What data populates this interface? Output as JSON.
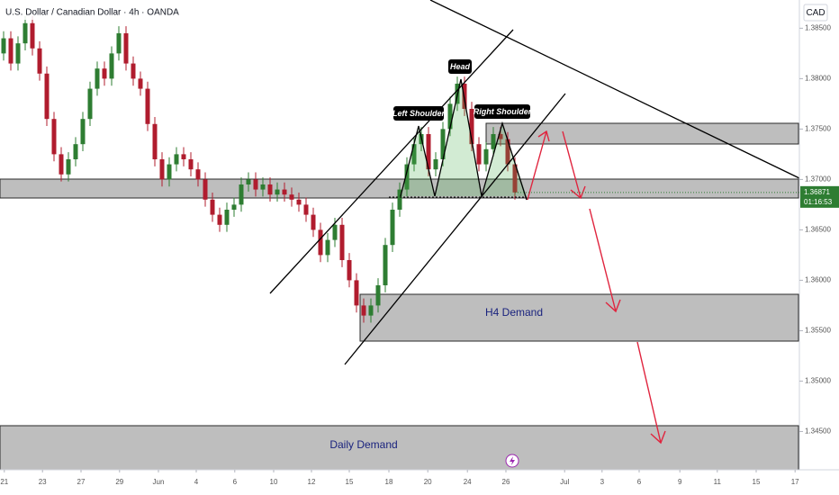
{
  "chart_data": {
    "type": "candlestick",
    "title": "U.S. Dollar / Canadian Dollar · 4h · OANDA",
    "currency": "CAD",
    "up_color": "#2e7d32",
    "down_color": "#b01c2e",
    "open": [
      1.3825,
      1.384,
      1.3815,
      1.3835,
      1.3855,
      1.383,
      1.3805,
      1.376,
      1.3725,
      1.3705,
      1.372,
      1.3735,
      1.376,
      1.379,
      1.381,
      1.38,
      1.3825,
      1.3845,
      1.3815,
      1.38,
      1.379,
      1.3755,
      1.372,
      1.37,
      1.3715,
      1.3725,
      1.372,
      1.371,
      1.37,
      1.368,
      1.3665,
      1.3655,
      1.367,
      1.3675,
      1.3695,
      1.37,
      1.369,
      1.3695,
      1.3685,
      1.369,
      1.3685,
      1.368,
      1.3675,
      1.3665,
      1.365,
      1.3625,
      1.364,
      1.3655,
      1.362,
      1.36,
      1.3575,
      1.3565,
      1.3575,
      1.3595,
      1.3635,
      1.367,
      1.369,
      1.3715,
      1.3735,
      1.3745,
      1.371,
      1.372,
      1.375,
      1.3775,
      1.3795,
      1.377,
      1.3735,
      1.3715,
      1.373,
      1.3745,
      1.374,
      1.3715
    ],
    "high": [
      1.3847,
      1.3847,
      1.3842,
      1.3862,
      1.3862,
      1.3837,
      1.3812,
      1.3767,
      1.3732,
      1.3727,
      1.3742,
      1.3767,
      1.3797,
      1.3817,
      1.3817,
      1.3832,
      1.3852,
      1.3852,
      1.3822,
      1.3807,
      1.3797,
      1.3762,
      1.3727,
      1.3722,
      1.3732,
      1.3732,
      1.3727,
      1.3717,
      1.3707,
      1.3687,
      1.3672,
      1.3677,
      1.3682,
      1.3702,
      1.3707,
      1.3707,
      1.3702,
      1.3702,
      1.3697,
      1.3697,
      1.3692,
      1.3687,
      1.3682,
      1.3672,
      1.3657,
      1.3647,
      1.3662,
      1.3662,
      1.3627,
      1.3607,
      1.3582,
      1.3582,
      1.3602,
      1.3642,
      1.3677,
      1.3697,
      1.3722,
      1.3742,
      1.3752,
      1.3752,
      1.3727,
      1.3757,
      1.3782,
      1.3802,
      1.3802,
      1.3777,
      1.3742,
      1.3737,
      1.3752,
      1.3752,
      1.3747,
      1.3722
    ],
    "low": [
      1.3818,
      1.3808,
      1.3808,
      1.3828,
      1.3823,
      1.3798,
      1.3753,
      1.3718,
      1.3698,
      1.3698,
      1.3713,
      1.3728,
      1.3753,
      1.3783,
      1.3793,
      1.3793,
      1.3818,
      1.3808,
      1.3793,
      1.3783,
      1.3748,
      1.3713,
      1.3693,
      1.3693,
      1.3708,
      1.3713,
      1.3703,
      1.3693,
      1.3673,
      1.3658,
      1.3648,
      1.3648,
      1.3663,
      1.3668,
      1.3688,
      1.3683,
      1.3683,
      1.3678,
      1.3678,
      1.3678,
      1.3673,
      1.3668,
      1.3658,
      1.3643,
      1.3618,
      1.3618,
      1.3633,
      1.3613,
      1.3593,
      1.3568,
      1.3558,
      1.3558,
      1.3568,
      1.3588,
      1.3628,
      1.3663,
      1.3683,
      1.3708,
      1.3728,
      1.3703,
      1.3703,
      1.3713,
      1.3743,
      1.3768,
      1.3763,
      1.3728,
      1.3708,
      1.3708,
      1.3723,
      1.3733,
      1.3708,
      1.368
    ],
    "close": [
      1.384,
      1.3815,
      1.3835,
      1.3855,
      1.383,
      1.3805,
      1.376,
      1.3725,
      1.3705,
      1.372,
      1.3735,
      1.376,
      1.379,
      1.381,
      1.38,
      1.3825,
      1.3845,
      1.3815,
      1.38,
      1.379,
      1.3755,
      1.372,
      1.37,
      1.3715,
      1.3725,
      1.372,
      1.371,
      1.37,
      1.368,
      1.3665,
      1.3655,
      1.367,
      1.3675,
      1.3695,
      1.37,
      1.369,
      1.3695,
      1.3685,
      1.369,
      1.3685,
      1.368,
      1.3675,
      1.3665,
      1.365,
      1.3625,
      1.364,
      1.3655,
      1.362,
      1.36,
      1.3575,
      1.3565,
      1.3575,
      1.3595,
      1.3635,
      1.367,
      1.369,
      1.3715,
      1.3735,
      1.3745,
      1.371,
      1.372,
      1.375,
      1.3775,
      1.3795,
      1.377,
      1.3735,
      1.3715,
      1.373,
      1.3745,
      1.374,
      1.3715,
      1.36871
    ],
    "last_price_label": "1.36871",
    "countdown": "01:16:53",
    "ylim": [
      1.3412,
      1.3878
    ],
    "yticks": [
      {
        "value": 1.385,
        "label": "1.38500"
      },
      {
        "value": 1.38,
        "label": "1.38000"
      },
      {
        "value": 1.375,
        "label": "1.37500"
      },
      {
        "value": 1.37,
        "label": "1.37000"
      },
      {
        "value": 1.365,
        "label": "1.36500"
      },
      {
        "value": 1.36,
        "label": "1.36000"
      },
      {
        "value": 1.355,
        "label": "1.35500"
      },
      {
        "value": 1.35,
        "label": "1.35000"
      },
      {
        "value": 1.345,
        "label": "1.34500"
      }
    ],
    "xlim": [
      -0.5,
      110.5
    ],
    "xticks": [
      {
        "value": 0.1,
        "label": "21"
      },
      {
        "value": 5.4,
        "label": "23"
      },
      {
        "value": 10.75,
        "label": "27"
      },
      {
        "value": 16.1,
        "label": "29"
      },
      {
        "value": 21.5,
        "label": "Jun"
      },
      {
        "value": 26.75,
        "label": "4"
      },
      {
        "value": 32.1,
        "label": "6"
      },
      {
        "value": 37.5,
        "label": "10"
      },
      {
        "value": 42.75,
        "label": "12"
      },
      {
        "value": 48,
        "label": "15"
      },
      {
        "value": 53.5,
        "label": "18"
      },
      {
        "value": 58.9,
        "label": "20"
      },
      {
        "value": 64.4,
        "label": "24"
      },
      {
        "value": 69.75,
        "label": "26"
      },
      {
        "value": 77.9,
        "label": "Jul"
      },
      {
        "value": 83.1,
        "label": "3"
      },
      {
        "value": 88.25,
        "label": "6"
      },
      {
        "value": 93.9,
        "label": "9"
      },
      {
        "value": 99.1,
        "label": "11"
      },
      {
        "value": 104.5,
        "label": "15"
      },
      {
        "value": 109.9,
        "label": "17"
      }
    ],
    "grid": false,
    "annotations": {
      "left_shoulder": "Left Shoulder",
      "head": "Head",
      "right_shoulder": "Right Shoulder",
      "h4_demand": "H4 Demand",
      "daily_demand": "Daily Demand"
    }
  }
}
